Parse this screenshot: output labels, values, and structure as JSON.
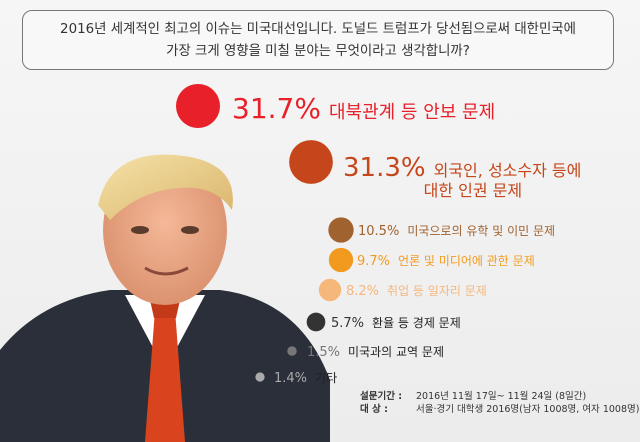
{
  "question": {
    "line1": "2016년 세계적인 최고의 이슈는 미국대선입니다. 도널드 트럼프가 당선됨으로써 대한민국에",
    "line2": "가장 크게 영향을 미칠 분야는 무엇이라고 생각합니까?"
  },
  "chart_data": {
    "type": "bubble",
    "title": "",
    "values_unit": "%",
    "items": [
      {
        "pct": 31.7,
        "pct_label": "31.7%",
        "label": [
          "대북관계 등 안보 문제"
        ],
        "color": "#e8202a"
      },
      {
        "pct": 31.3,
        "pct_label": "31.3%",
        "label": [
          "외국인, 성소수자 등에",
          "대한 인권 문제"
        ],
        "color": "#c5461a"
      },
      {
        "pct": 10.5,
        "pct_label": "10.5%",
        "label": [
          "미국으로의 유학 및 이민 문제"
        ],
        "color": "#a0622e"
      },
      {
        "pct": 9.7,
        "pct_label": "9.7%",
        "label": [
          "언론 및 미디어에 관한 문제"
        ],
        "color": "#f29a1d"
      },
      {
        "pct": 8.2,
        "pct_label": "8.2%",
        "label": [
          "취업 등 일자리 문제"
        ],
        "color": "#f6b77b"
      },
      {
        "pct": 5.7,
        "pct_label": "5.7%",
        "label": [
          "환율 등 경제 문제"
        ],
        "color": "#333333"
      },
      {
        "pct": 1.5,
        "pct_label": "1.5%",
        "label": [
          "미국과의 교역 문제"
        ],
        "color": "#777777"
      },
      {
        "pct": 1.4,
        "pct_label": "1.4%",
        "label": [
          "기타"
        ],
        "color": "#aaaaaa"
      }
    ]
  },
  "footer": {
    "period_label": "설문기간 :",
    "period_value": "2016년 11월 17일~ 11월 24일 (8일간)",
    "target_label": "대      상 :",
    "target_value": "서울·경기 대학생 2016명(남자 1008명, 여자 1008명)"
  },
  "colors": {
    "accent_red": "#e8202a",
    "suit": "#2a2f3a",
    "tie": "#d9441f"
  }
}
